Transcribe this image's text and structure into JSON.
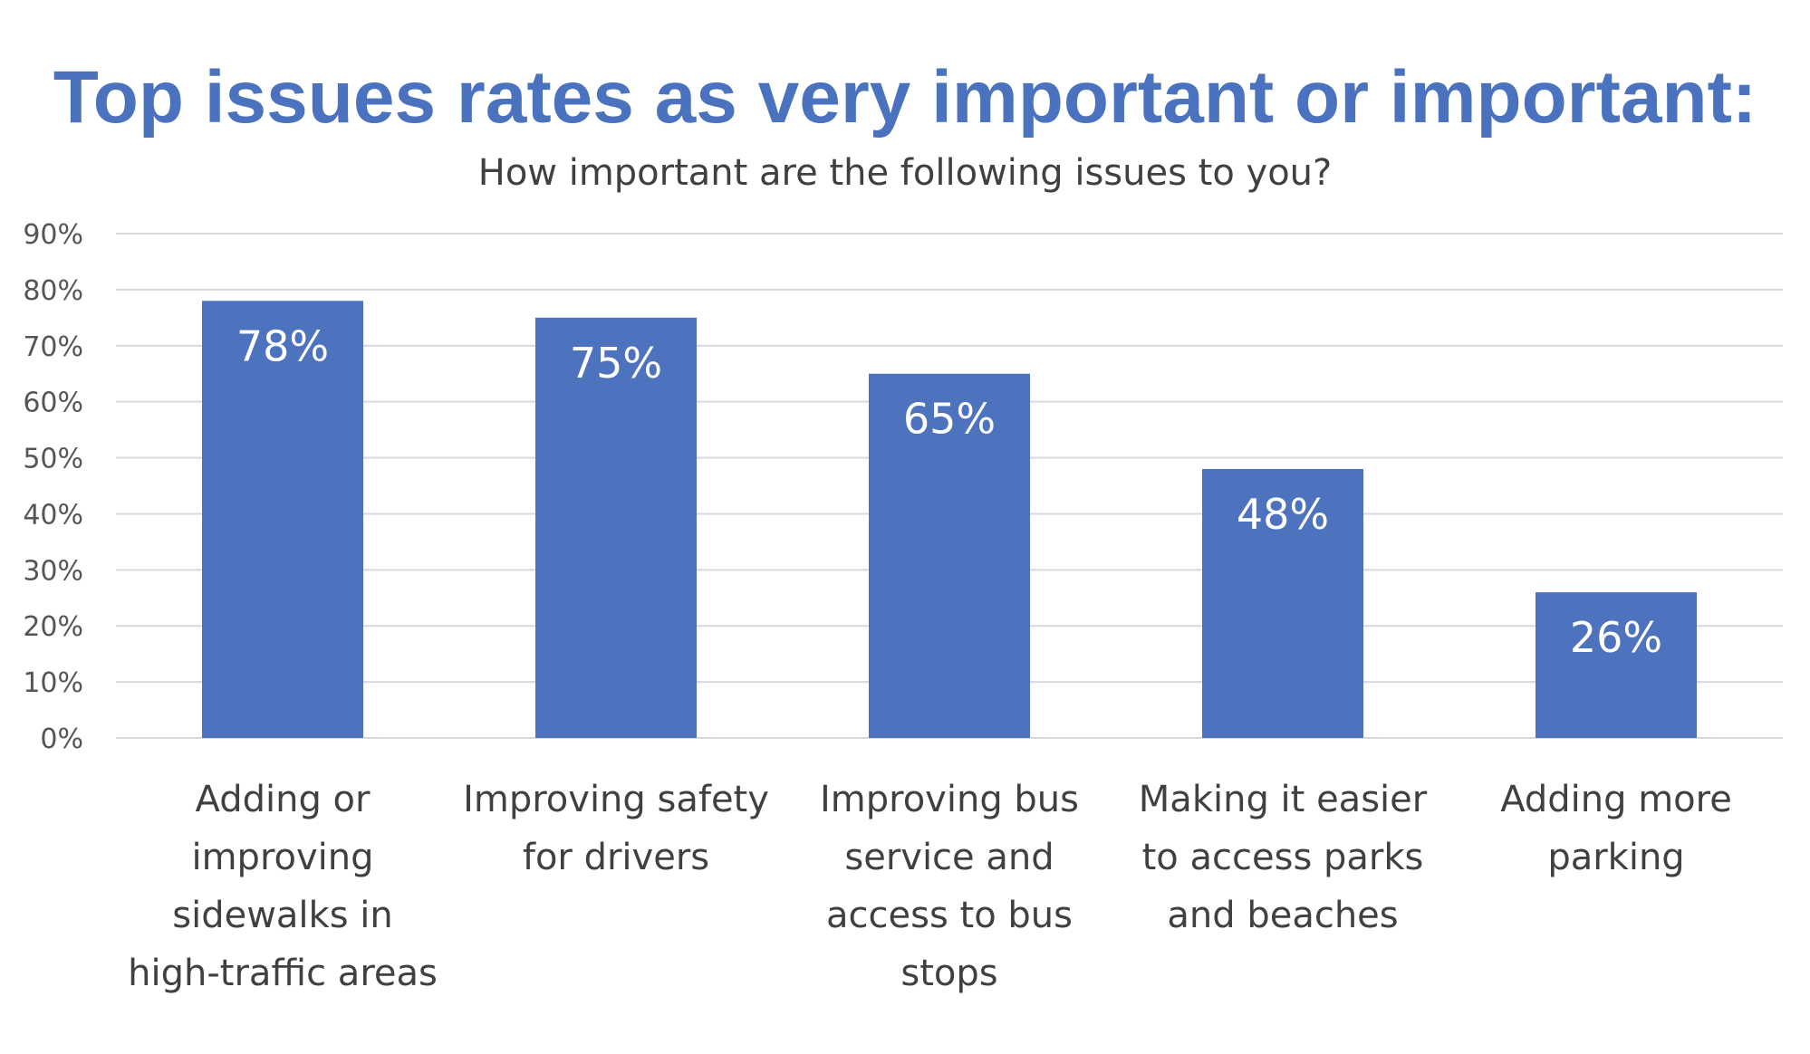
{
  "chart_data": {
    "type": "bar",
    "title": "Top issues rates as very important or important:",
    "subtitle": "How important are the following issues to you?",
    "categories": [
      [
        "Adding or",
        "improving",
        "sidewalks in",
        "high-traffic areas"
      ],
      [
        "Improving safety",
        "for drivers"
      ],
      [
        "Improving bus",
        "service and",
        "access to bus",
        "stops"
      ],
      [
        "Making it easier",
        "to access parks",
        "and beaches"
      ],
      [
        "Adding more",
        "parking"
      ]
    ],
    "values": [
      78,
      75,
      65,
      48,
      26
    ],
    "data_labels": [
      "78%",
      "75%",
      "65%",
      "48%",
      "26%"
    ],
    "ylim": [
      0,
      90
    ],
    "yticks": [
      0,
      10,
      20,
      30,
      40,
      50,
      60,
      70,
      80,
      90
    ],
    "ytick_labels": [
      "0%",
      "10%",
      "20%",
      "30%",
      "40%",
      "50%",
      "60%",
      "70%",
      "80%",
      "90%"
    ],
    "xlabel": "",
    "ylabel": "",
    "grid": true,
    "legend": "none",
    "bar_color": "#4e73be",
    "title_color": "#4a72be",
    "gridline_color": "#d9d9d9"
  }
}
